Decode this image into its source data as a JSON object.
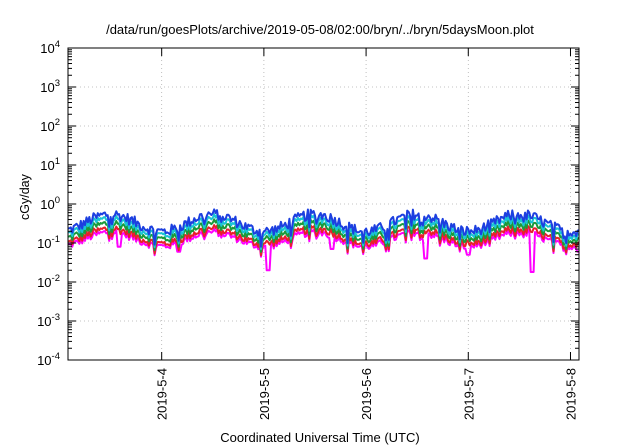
{
  "chart_data": {
    "type": "line",
    "title": "/data/run/goesPlots/archive/2019-05-08/02:00/bryn/../bryn/5daysMoon.plot",
    "xlabel": "Coordinated Universal Time (UTC)",
    "ylabel": "cGy/day",
    "yscale": "log",
    "ylim": [
      0.0001,
      10000
    ],
    "y_ticks": [
      {
        "base": "10",
        "exp": "-4"
      },
      {
        "base": "10",
        "exp": "-3"
      },
      {
        "base": "10",
        "exp": "-2"
      },
      {
        "base": "10",
        "exp": "-1"
      },
      {
        "base": "10",
        "exp": "0"
      },
      {
        "base": "10",
        "exp": "1"
      },
      {
        "base": "10",
        "exp": "2"
      },
      {
        "base": "10",
        "exp": "3"
      },
      {
        "base": "10",
        "exp": "4"
      }
    ],
    "xlim": [
      "2019-05-03 02:00",
      "2019-05-08 02:00"
    ],
    "x_ticks": [
      "2019-5-4",
      "2019-5-5",
      "2019-5-6",
      "2019-5-7",
      "2019-5-8"
    ],
    "grid": true,
    "series": [
      {
        "color": "#ff00ff",
        "base": 0.125,
        "amp": 0.18
      },
      {
        "color": "#e8202a",
        "base": 0.15,
        "amp": 0.19
      },
      {
        "color": "#1a9a3a",
        "base": 0.2,
        "amp": 0.2
      },
      {
        "color": "#19c4d4",
        "base": 0.26,
        "amp": 0.21
      },
      {
        "color": "#1c3fe0",
        "base": 0.33,
        "amp": 0.22
      }
    ],
    "dips": [
      {
        "x": "2019-05-05 01:00",
        "y": 0.02
      },
      {
        "x": "2019-05-05 16:00",
        "y": 0.07
      },
      {
        "x": "2019-05-06 14:00",
        "y": 0.04
      },
      {
        "x": "2019-05-07 00:00",
        "y": 0.05
      },
      {
        "x": "2019-05-07 15:00",
        "y": 0.018
      },
      {
        "x": "2019-05-03 14:00",
        "y": 0.08
      },
      {
        "x": "2019-05-04 04:00",
        "y": 0.06
      },
      {
        "x": "2019-05-08 02:00",
        "y": 0.06
      }
    ]
  }
}
